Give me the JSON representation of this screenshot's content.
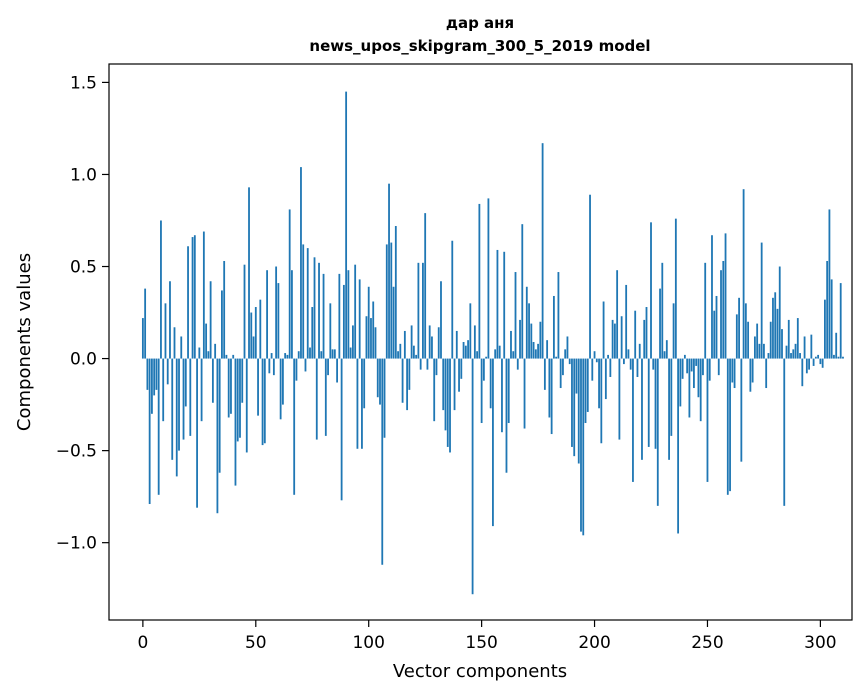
{
  "chart_data": {
    "type": "bar",
    "title_line1": "дар аня",
    "title_line2": "news_upos_skipgram_300_5_2019 model",
    "xlabel": "Vector components",
    "ylabel": "Components values",
    "xlim": [
      -15,
      314
    ],
    "ylim": [
      -1.42,
      1.6
    ],
    "xticks": [
      0,
      50,
      100,
      150,
      200,
      250,
      300
    ],
    "xtick_labels": [
      "0",
      "50",
      "100",
      "150",
      "200",
      "250",
      "300"
    ],
    "yticks": [
      -1.0,
      -0.5,
      0.0,
      0.5,
      1.0,
      1.5
    ],
    "ytick_labels": [
      "−1.0",
      "−0.5",
      "0.0",
      "0.5",
      "1.0",
      "1.5"
    ],
    "bar_color": "#1f77b4",
    "values": [
      0.22,
      0.38,
      -0.17,
      -0.79,
      -0.3,
      -0.2,
      -0.17,
      -0.74,
      0.75,
      -0.34,
      0.3,
      -0.14,
      0.42,
      -0.55,
      0.17,
      -0.64,
      -0.5,
      0.12,
      -0.44,
      -0.26,
      0.61,
      -0.42,
      0.66,
      0.67,
      -0.81,
      0.06,
      -0.34,
      0.69,
      0.19,
      0.04,
      0.42,
      -0.24,
      0.08,
      -0.84,
      -0.62,
      0.37,
      0.53,
      0.02,
      -0.32,
      -0.3,
      0.02,
      -0.69,
      -0.45,
      -0.43,
      -0.24,
      0.51,
      -0.51,
      0.93,
      0.25,
      0.12,
      0.28,
      -0.31,
      0.32,
      -0.47,
      -0.46,
      0.48,
      -0.08,
      0.03,
      -0.09,
      0.5,
      0.41,
      -0.33,
      -0.25,
      0.03,
      0.02,
      0.81,
      0.48,
      -0.74,
      -0.12,
      0.04,
      1.04,
      0.62,
      -0.07,
      0.6,
      0.06,
      0.28,
      0.55,
      -0.44,
      0.52,
      0.04,
      0.46,
      -0.42,
      -0.09,
      0.3,
      0.05,
      0.05,
      -0.13,
      0.46,
      -0.77,
      0.4,
      1.45,
      0.48,
      0.06,
      0.18,
      0.51,
      -0.49,
      0.43,
      -0.49,
      -0.27,
      0.23,
      0.39,
      0.22,
      0.31,
      0.17,
      -0.21,
      -0.25,
      -1.12,
      -0.43,
      0.62,
      0.95,
      0.63,
      0.39,
      0.72,
      0.04,
      0.08,
      -0.24,
      0.15,
      -0.28,
      -0.17,
      0.18,
      0.07,
      0.02,
      0.52,
      -0.06,
      0.52,
      0.79,
      -0.06,
      0.18,
      0.12,
      -0.34,
      -0.09,
      0.17,
      0.42,
      -0.28,
      -0.39,
      -0.48,
      -0.51,
      0.64,
      -0.28,
      0.15,
      -0.18,
      -0.11,
      0.09,
      0.07,
      0.1,
      0.3,
      -1.28,
      0.18,
      0.04,
      0.84,
      -0.35,
      -0.12,
      0.01,
      0.87,
      -0.27,
      -0.91,
      0.05,
      0.59,
      0.07,
      -0.4,
      0.58,
      -0.62,
      -0.35,
      0.15,
      0.04,
      0.47,
      -0.06,
      0.21,
      0.73,
      -0.38,
      0.39,
      0.3,
      0.19,
      0.09,
      0.05,
      0.08,
      0.2,
      1.17,
      -0.17,
      0.1,
      -0.32,
      -0.41,
      0.34,
      0.01,
      0.47,
      -0.16,
      -0.09,
      0.05,
      0.12,
      -0.03,
      -0.48,
      -0.53,
      -0.19,
      -0.57,
      -0.94,
      -0.96,
      -0.35,
      -0.29,
      0.89,
      -0.12,
      0.04,
      -0.02,
      -0.27,
      -0.46,
      0.31,
      -0.22,
      0.02,
      -0.1,
      0.21,
      0.19,
      0.48,
      -0.44,
      0.23,
      -0.03,
      0.4,
      0.05,
      -0.06,
      -0.67,
      0.26,
      -0.1,
      0.08,
      -0.55,
      0.21,
      0.28,
      -0.48,
      0.74,
      -0.06,
      -0.49,
      -0.8,
      0.38,
      0.52,
      0.04,
      0.1,
      -0.55,
      -0.42,
      0.3,
      0.76,
      -0.95,
      -0.26,
      -0.11,
      0.02,
      -0.08,
      -0.32,
      -0.07,
      -0.16,
      -0.04,
      -0.21,
      -0.34,
      -0.09,
      0.52,
      -0.67,
      -0.12,
      0.67,
      0.26,
      0.34,
      -0.09,
      0.48,
      0.53,
      0.68,
      -0.74,
      -0.72,
      -0.13,
      -0.16,
      0.24,
      0.33,
      -0.56,
      0.92,
      0.3,
      0.2,
      -0.18,
      -0.13,
      0.12,
      0.19,
      0.08,
      0.63,
      0.08,
      -0.16,
      0.03,
      0.2,
      0.33,
      0.36,
      0.27,
      0.5,
      0.16,
      -0.8,
      0.07,
      0.21,
      0.03,
      0.05,
      0.08,
      0.22,
      0.03,
      -0.15,
      0.12,
      -0.08,
      -0.06,
      0.13,
      -0.04,
      0.01,
      0.02,
      -0.03,
      -0.05,
      0.32,
      0.53,
      0.81,
      0.43,
      0.02,
      0.14,
      0.01,
      0.41,
      0.01
    ]
  }
}
